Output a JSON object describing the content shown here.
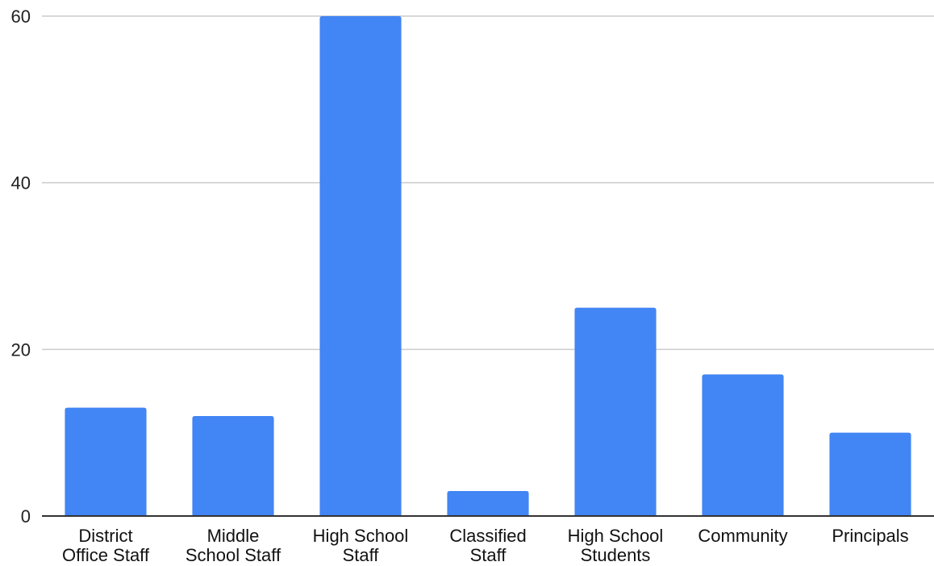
{
  "chart_data": {
    "type": "bar",
    "categories": [
      [
        "District",
        "Office Staff"
      ],
      [
        "Middle",
        "School Staff"
      ],
      [
        "High School",
        "Staff"
      ],
      [
        "Classified",
        "Staff"
      ],
      [
        "High School",
        "Students"
      ],
      [
        "Community"
      ],
      [
        "Principals"
      ]
    ],
    "values": [
      13,
      12,
      60,
      3,
      25,
      17,
      10
    ],
    "title": "",
    "xlabel": "",
    "ylabel": "",
    "ylim": [
      0,
      60
    ],
    "yticks": [
      0,
      20,
      40,
      60
    ],
    "grid": true,
    "legend": "none",
    "bar_color": "#4285f4"
  }
}
